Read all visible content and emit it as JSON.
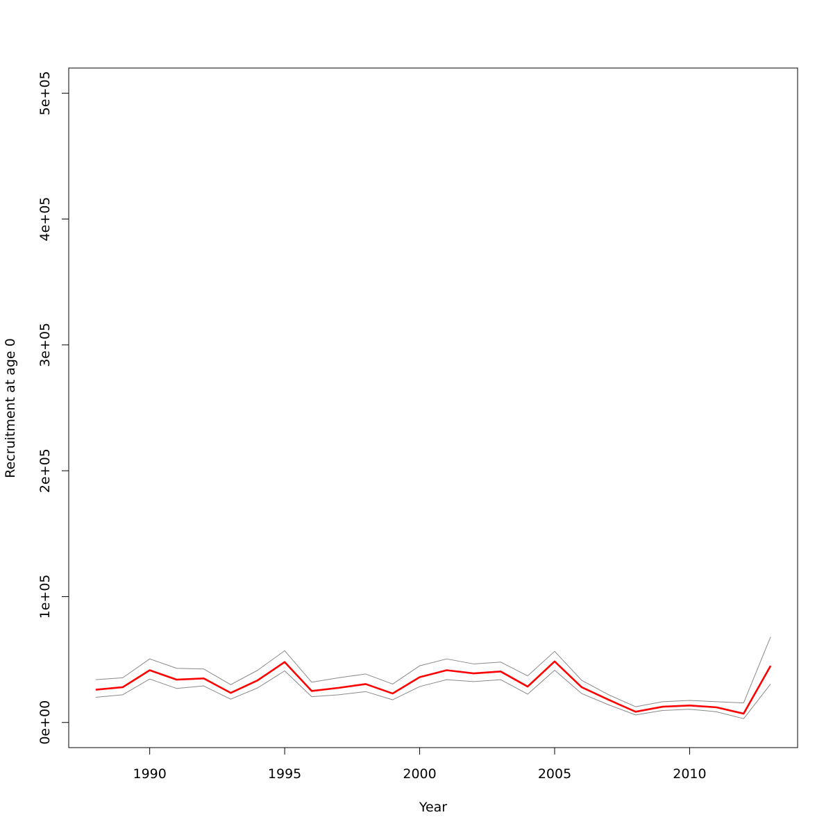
{
  "chart_data": {
    "type": "line",
    "title": "",
    "xlabel": "Year",
    "ylabel": "Recruitment at age 0",
    "xlim": [
      1987,
      2014
    ],
    "ylim": [
      -20000,
      520000
    ],
    "x_ticks": [
      1990,
      1995,
      2000,
      2005,
      2010
    ],
    "x_tick_labels": [
      "1990",
      "1995",
      "2000",
      "2005",
      "2010"
    ],
    "y_ticks": [
      0,
      100000,
      200000,
      300000,
      400000,
      500000
    ],
    "y_tick_labels": [
      "0e+00",
      "1e+05",
      "2e+05",
      "3e+05",
      "4e+05",
      "5e+05"
    ],
    "grid": false,
    "x": [
      1988,
      1989,
      1990,
      1991,
      1992,
      1993,
      1994,
      1995,
      1996,
      1997,
      1998,
      1999,
      2000,
      2001,
      2002,
      2003,
      2004,
      2005,
      2006,
      2007,
      2008,
      2009,
      2010,
      2011,
      2012,
      2013
    ],
    "series": [
      {
        "role": "upper-bound",
        "color": "#888888",
        "values": [
          34000,
          35500,
          50500,
          43000,
          42500,
          30000,
          41500,
          57000,
          32000,
          35500,
          38500,
          30500,
          45000,
          50500,
          46500,
          48000,
          37000,
          56500,
          33500,
          22000,
          12500,
          16500,
          17500,
          16500,
          15500,
          68000
        ]
      },
      {
        "role": "estimate",
        "color": "#ff0000",
        "values": [
          26000,
          28000,
          41500,
          34000,
          35000,
          23500,
          33500,
          48000,
          25000,
          27500,
          30500,
          23000,
          36000,
          41500,
          39000,
          40500,
          28500,
          48500,
          28000,
          18000,
          8500,
          12500,
          13500,
          12000,
          7000,
          45000
        ]
      },
      {
        "role": "lower-bound",
        "color": "#888888",
        "values": [
          20000,
          22000,
          34500,
          27000,
          29000,
          18500,
          27500,
          41000,
          20500,
          22000,
          24500,
          18000,
          28500,
          34000,
          32500,
          34000,
          22500,
          41500,
          23000,
          14000,
          6000,
          9500,
          10500,
          8500,
          3000,
          30500
        ]
      }
    ]
  }
}
